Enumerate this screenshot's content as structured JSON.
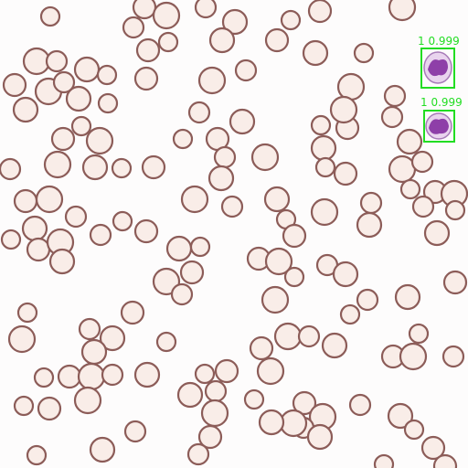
{
  "detections": [
    {
      "label": "1 0.999"
    },
    {
      "label": "1 0.999"
    }
  ]
}
